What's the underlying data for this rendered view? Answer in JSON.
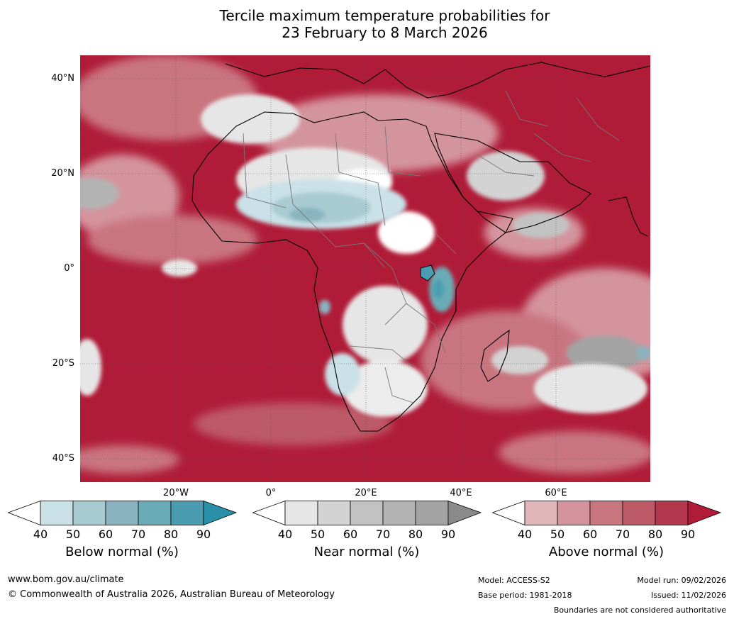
{
  "title": {
    "line1": "Tercile maximum temperature probabilities for",
    "line2": "23 February to 8 March 2026"
  },
  "map": {
    "region": "Africa",
    "lat_labels": [
      "40°N",
      "20°N",
      "0°",
      "20°S",
      "40°S"
    ],
    "lon_labels": [
      "20°W",
      "0°",
      "20°E",
      "40°E",
      "60°E"
    ]
  },
  "colorbars": [
    {
      "label": "Below normal (%)",
      "ticks": [
        "40",
        "50",
        "60",
        "70",
        "80",
        "90"
      ],
      "colors": [
        "#ffffff",
        "#c9e1e7",
        "#a8cad1",
        "#89b4c0",
        "#6aacb6",
        "#4a9db0",
        "#2a8fa8"
      ]
    },
    {
      "label": "Near normal (%)",
      "ticks": [
        "40",
        "50",
        "60",
        "70",
        "80",
        "90"
      ],
      "colors": [
        "#ffffff",
        "#e6e6e6",
        "#d3d3d3",
        "#c2c2c2",
        "#b3b3b3",
        "#a3a3a3",
        "#8a8a8a"
      ]
    },
    {
      "label": "Above normal (%)",
      "ticks": [
        "40",
        "50",
        "60",
        "70",
        "80",
        "90"
      ],
      "colors": [
        "#ffffff",
        "#e0b6bb",
        "#d4949d",
        "#c97580",
        "#bd5a68",
        "#b3384d",
        "#b01c38"
      ]
    }
  ],
  "footer": {
    "website": "www.bom.gov.au/climate",
    "copyright": "© Commonwealth of Australia 2026, Australian Bureau of Meteorology",
    "model": "Model: ACCESS-S2",
    "base_period": "Base period: 1981-2018",
    "model_run": "Model run: 09/02/2026",
    "issued": "Issued: 11/02/2026",
    "disclaimer": "Boundaries are not considered authoritative"
  }
}
